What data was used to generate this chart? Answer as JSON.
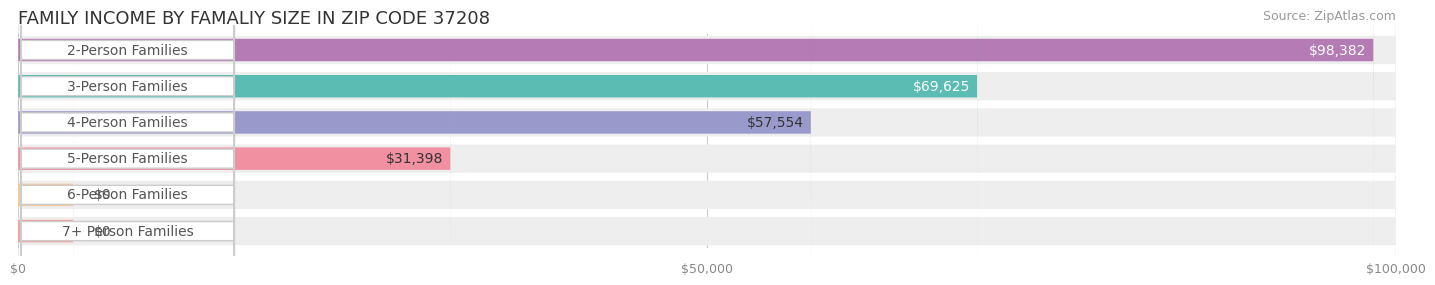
{
  "title": "FAMILY INCOME BY FAMALIY SIZE IN ZIP CODE 37208",
  "source": "Source: ZipAtlas.com",
  "categories": [
    "2-Person Families",
    "3-Person Families",
    "4-Person Families",
    "5-Person Families",
    "6-Person Families",
    "7+ Person Families"
  ],
  "values": [
    98382,
    69625,
    57554,
    31398,
    0,
    0
  ],
  "bar_colors": [
    "#b47bb4",
    "#5bbcb4",
    "#9999cc",
    "#f090a0",
    "#f5c896",
    "#f0a0a0"
  ],
  "bar_bg_color": "#eeeeee",
  "label_bg_color": "#ffffff",
  "xlim": [
    0,
    100000
  ],
  "xticks": [
    0,
    50000,
    100000
  ],
  "xtick_labels": [
    "$0",
    "$50,000",
    "$100,000"
  ],
  "value_label_colors_inside": [
    "#ffffff",
    "#ffffff",
    "#333333",
    "#333333",
    "#333333",
    "#333333"
  ],
  "title_color": "#333333",
  "source_color": "#999999",
  "title_fontsize": 13,
  "source_fontsize": 9,
  "tick_fontsize": 9,
  "label_fontsize": 10,
  "value_fontsize": 10,
  "background_color": "#ffffff"
}
